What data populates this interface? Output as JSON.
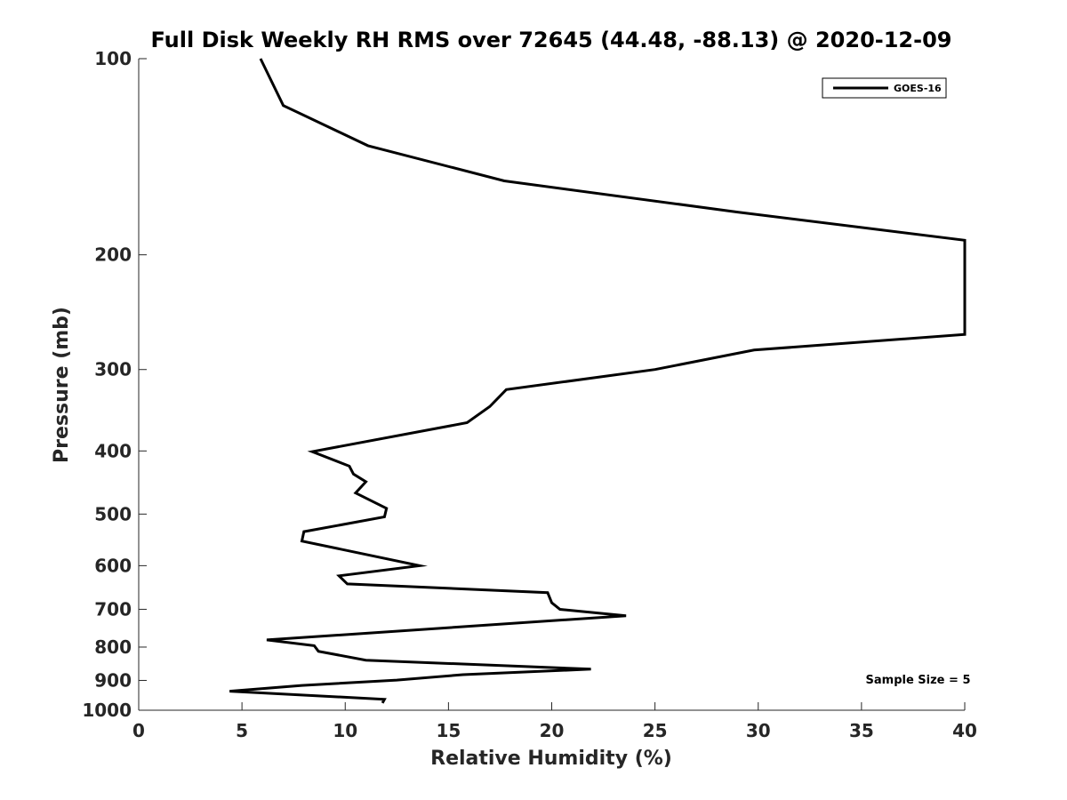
{
  "chart_data": {
    "type": "line",
    "title": "Full Disk Weekly RH RMS over 72645 (44.48, -88.13) @ 2020-12-09",
    "xlabel": "Relative Humidity (%)",
    "ylabel": "Pressure (mb)",
    "xlim": [
      0,
      40
    ],
    "ylim": [
      100,
      1000
    ],
    "y_scale": "log",
    "y_reversed": true,
    "grid": false,
    "legend_position": "top-right",
    "x_ticks": [
      0,
      5,
      10,
      15,
      20,
      25,
      30,
      35,
      40
    ],
    "x_tick_labels": [
      "0",
      "5",
      "10",
      "15",
      "20",
      "25",
      "30",
      "35",
      "40"
    ],
    "y_ticks": [
      100,
      200,
      300,
      400,
      500,
      600,
      700,
      800,
      900,
      1000
    ],
    "y_tick_labels": [
      "100",
      "200",
      "300",
      "400",
      "500",
      "600",
      "700",
      "800",
      "900",
      "1000"
    ],
    "series": [
      {
        "name": "GOES-16",
        "color": "#000000",
        "points": [
          [
            5.9,
            100
          ],
          [
            7.0,
            118
          ],
          [
            11.1,
            136
          ],
          [
            17.7,
            154
          ],
          [
            29.0,
            172
          ],
          [
            40.0,
            190
          ],
          [
            40.0,
            265
          ],
          [
            29.8,
            280
          ],
          [
            25.0,
            300
          ],
          [
            17.8,
            322
          ],
          [
            17.0,
            342
          ],
          [
            15.9,
            362
          ],
          [
            8.4,
            401
          ],
          [
            10.2,
            422
          ],
          [
            10.4,
            434
          ],
          [
            11.0,
            446
          ],
          [
            10.5,
            464
          ],
          [
            12.0,
            490
          ],
          [
            11.9,
            505
          ],
          [
            8.0,
            532
          ],
          [
            7.9,
            550
          ],
          [
            13.6,
            600
          ],
          [
            9.7,
            622
          ],
          [
            10.1,
            640
          ],
          [
            19.8,
            660
          ],
          [
            20.0,
            684
          ],
          [
            20.4,
            700
          ],
          [
            23.6,
            716
          ],
          [
            6.2,
            780
          ],
          [
            8.5,
            796
          ],
          [
            8.7,
            812
          ],
          [
            11.0,
            838
          ],
          [
            21.9,
            865
          ],
          [
            15.7,
            882
          ],
          [
            12.5,
            899
          ],
          [
            7.9,
            916
          ],
          [
            4.4,
            935
          ],
          [
            11.9,
            962
          ],
          [
            11.8,
            975
          ]
        ]
      }
    ],
    "annotations": [
      {
        "text": "Sample Size = 5",
        "x": 35.2,
        "y": 910
      }
    ]
  }
}
